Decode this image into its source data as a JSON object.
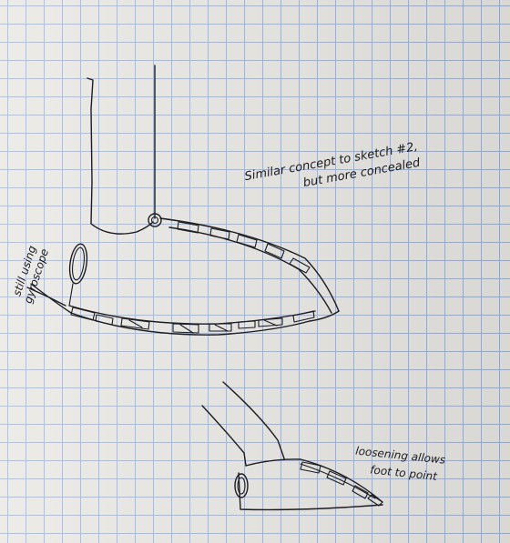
{
  "notes": {
    "concept_line1": "Similar concept to sketch #2,",
    "concept_line2": "but more concealed",
    "gyro_line1": "still using",
    "gyro_line2": "gyroscope",
    "point_line1": "loosening allows",
    "point_line2": "foot to point"
  },
  "colors": {
    "paper": "#e7e5e1",
    "grid": "#9fb0c9",
    "ink": "#1c1c22"
  }
}
